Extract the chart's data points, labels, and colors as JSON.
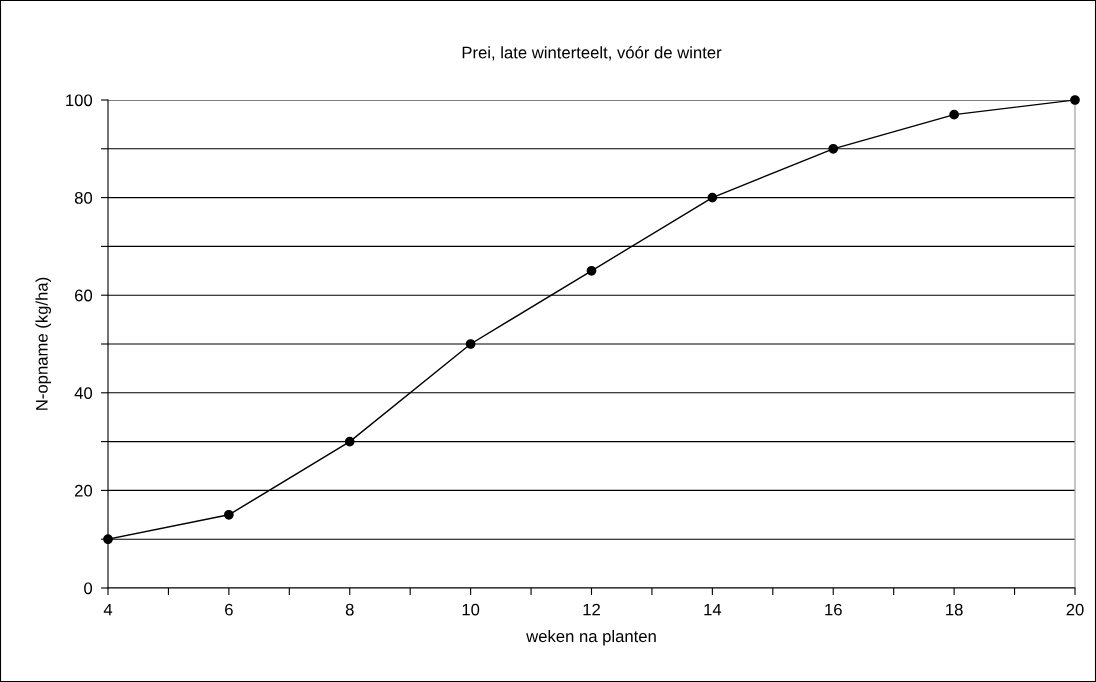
{
  "chart_data": {
    "type": "line",
    "title": "Prei, late winterteelt, vóór de winter",
    "xlabel": "weken na planten",
    "ylabel": "N-opname (kg/ha)",
    "x": [
      4,
      6,
      8,
      10,
      12,
      14,
      16,
      18,
      20
    ],
    "series": [
      {
        "color": "#000000",
        "values": [
          10,
          15,
          30,
          50,
          65,
          80,
          90,
          97,
          100
        ]
      }
    ],
    "xlim": [
      4,
      20
    ],
    "ylim": [
      0,
      100
    ],
    "xticks": [
      4,
      {
        "value": 5,
        "label": null
      },
      6,
      {
        "value": 7,
        "label": null
      },
      8,
      {
        "value": 9,
        "label": null
      },
      10,
      {
        "value": 11,
        "label": null
      },
      12,
      {
        "value": 13,
        "label": null
      },
      14,
      {
        "value": 15,
        "label": null
      },
      16,
      {
        "value": 17,
        "label": null
      },
      18,
      {
        "value": 19,
        "label": null
      },
      20
    ],
    "yticks": [
      0,
      {
        "value": 10,
        "label": null
      },
      20,
      {
        "value": 30,
        "label": null
      },
      40,
      {
        "value": 50,
        "label": null
      },
      60,
      {
        "value": 70,
        "label": null
      },
      80,
      {
        "value": 90,
        "label": null
      },
      100
    ],
    "grid": "y",
    "marker": "circle",
    "line_style": "solid",
    "legend": false
  }
}
